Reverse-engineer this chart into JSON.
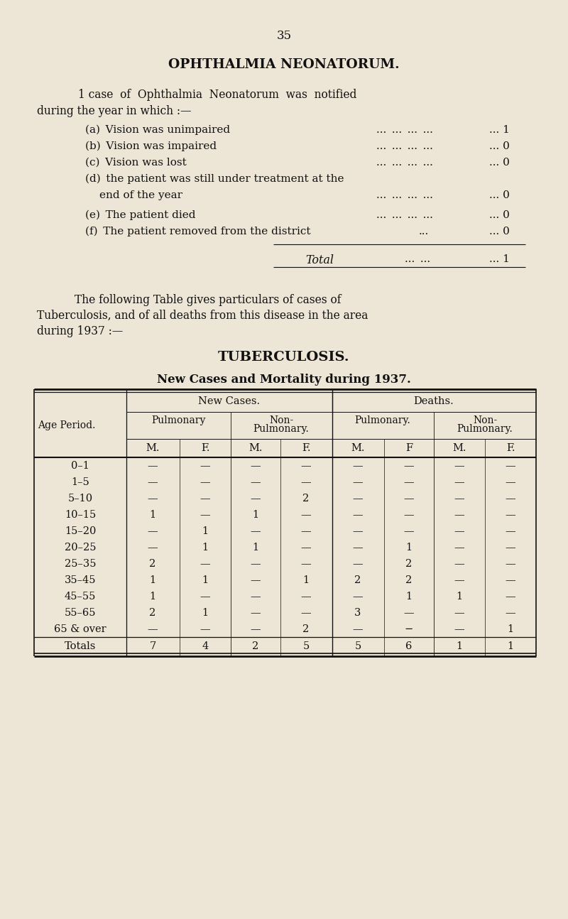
{
  "bg_color": "#ede5d5",
  "page_number": "35",
  "title1": "OPHTHALMIA NEONATORUM.",
  "total_label": "Total",
  "total_value": "1",
  "tb_title": "TUBERCULOSIS.",
  "tb_subtitle": "New Cases and Mortality during 1937.",
  "col_mf": [
    "M.",
    "F.",
    "M.",
    "F.",
    "M.",
    "F",
    "M.",
    "F."
  ],
  "age_periods": [
    "0–1",
    "1–5",
    "5–10",
    "10–15",
    "15–20",
    "20–25",
    "25–35",
    "35–45",
    "45–55",
    "55–65",
    "65 & over"
  ],
  "table_data": [
    [
      "—",
      "—",
      "—",
      "—",
      "—",
      "—",
      "—",
      "—"
    ],
    [
      "—",
      "—",
      "—",
      "—",
      "—",
      "—",
      "—",
      "—"
    ],
    [
      "—",
      "—",
      "—",
      "2",
      "—",
      "—",
      "—",
      "—"
    ],
    [
      "1",
      "—",
      "1",
      "—",
      "—",
      "—",
      "—",
      "—"
    ],
    [
      "—",
      "1",
      "—",
      "—",
      "—",
      "—",
      "—",
      "—"
    ],
    [
      "—",
      "1",
      "1",
      "—",
      "—",
      "1",
      "—",
      "—"
    ],
    [
      "2",
      "—",
      "—",
      "—",
      "—",
      "2",
      "—",
      "—"
    ],
    [
      "1",
      "1",
      "—",
      "1",
      "2",
      "2",
      "—",
      "—"
    ],
    [
      "1",
      "—",
      "—",
      "—",
      "—",
      "1",
      "1",
      "—"
    ],
    [
      "2",
      "1",
      "—",
      "—",
      "3",
      "—",
      "—",
      "—"
    ],
    [
      "—",
      "—",
      "—",
      "2",
      "—",
      "−",
      "—",
      "1"
    ]
  ],
  "totals_row": [
    "7",
    "4",
    "2",
    "5",
    "5",
    "6",
    "1",
    "1"
  ],
  "text_color": "#111111"
}
